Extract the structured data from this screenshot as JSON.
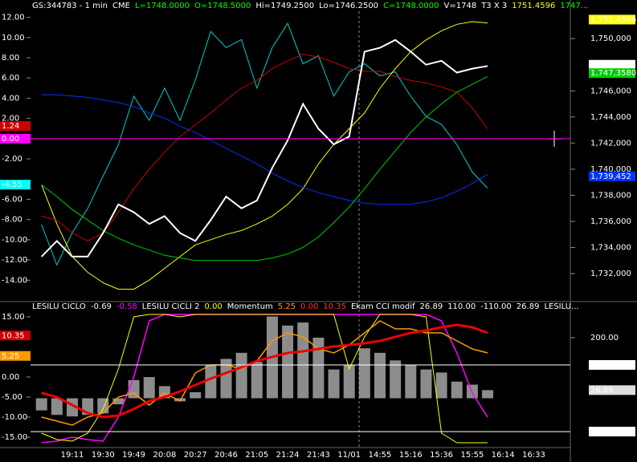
{
  "chart_data": [
    {
      "type": "line",
      "header": [
        {
          "text": "GS:344783 - 1 min",
          "color": "#ffffff"
        },
        {
          "text": "CME",
          "color": "#ffffff"
        },
        {
          "text": "L=1748.0000",
          "color": "#00ff00"
        },
        {
          "text": "O=1748.5000",
          "color": "#00ff00"
        },
        {
          "text": "Hi=1749.2500",
          "color": "#ffffff"
        },
        {
          "text": "Lo=1746.2500",
          "color": "#ffffff"
        },
        {
          "text": "C=1748.0000",
          "color": "#00ff00"
        },
        {
          "text": "V=1748",
          "color": "#ffffff"
        },
        {
          "text": "T3 X 3",
          "color": "#ffffff"
        },
        {
          "text": "1751.4596",
          "color": "#ffff00"
        },
        {
          "text": "1747...",
          "color": "#00ff00"
        }
      ],
      "ylim": [
        -15.8,
        12.6
      ],
      "yticks": [
        {
          "value": 12,
          "label": "12.00"
        },
        {
          "value": 10,
          "label": "10.00"
        },
        {
          "value": 8,
          "label": "8.00"
        },
        {
          "value": 6,
          "label": "6.00"
        },
        {
          "value": 4,
          "label": "4.00"
        },
        {
          "value": 2,
          "label": "2.00"
        },
        {
          "value": -2,
          "label": "-2.00"
        },
        {
          "value": -6,
          "label": "-6.00"
        },
        {
          "value": -8,
          "label": "-8.00"
        },
        {
          "value": -10,
          "label": "-10.00"
        },
        {
          "value": -12,
          "label": "-12.00"
        },
        {
          "value": -14,
          "label": "-14.00"
        }
      ],
      "y2lim": [
        1730100,
        1752100
      ],
      "y2ticks": [
        {
          "value": 1732000,
          "label": "1,732,000"
        },
        {
          "value": 1734000,
          "label": "1,734,000"
        },
        {
          "value": 1736000,
          "label": "1,736,000"
        },
        {
          "value": 1738000,
          "label": "1,738,000"
        },
        {
          "value": 1740000,
          "label": "1,740,000"
        },
        {
          "value": 1742000,
          "label": "1,742,000"
        },
        {
          "value": 1744000,
          "label": "1,744,000"
        },
        {
          "value": 1746000,
          "label": "1,746,000"
        },
        {
          "value": 1750000,
          "label": "1,750,000"
        }
      ],
      "series": [
        {
          "color": "#00cccc",
          "width": 1,
          "axis": "y",
          "values": [
            -8.5,
            -12.5,
            -9.3,
            -6.9,
            -3.7,
            -0.6,
            4.2,
            1.8,
            5.0,
            1.8,
            5.8,
            10.6,
            9.0,
            9.8,
            5.0,
            9.0,
            11.4,
            7.4,
            8.2,
            4.2,
            6.6,
            7.4,
            6.2,
            6.6,
            4.2,
            2.2,
            1.4,
            -0.6,
            -3.3,
            -4.9,
            null,
            null,
            null
          ]
        },
        {
          "color": "#ffff00",
          "width": 1,
          "axis": "y2",
          "values": [
            1738800,
            1735800,
            1733300,
            1732100,
            1731300,
            1730800,
            1730800,
            1731500,
            1732400,
            1733300,
            1734200,
            1734600,
            1735000,
            1735300,
            1735800,
            1736400,
            1737300,
            1738500,
            1740400,
            1741900,
            1743100,
            1744300,
            1746200,
            1747700,
            1749000,
            1749900,
            1750600,
            1751100,
            1751300,
            1751200,
            null,
            null,
            null
          ]
        },
        {
          "color": "#cc0000",
          "width": 1,
          "axis": "y2",
          "values": [
            1736400,
            1736100,
            1735100,
            1734500,
            1735100,
            1736700,
            1738500,
            1740000,
            1741300,
            1742500,
            1743400,
            1744300,
            1745300,
            1746200,
            1746800,
            1747700,
            1748300,
            1748800,
            1748600,
            1748200,
            1747700,
            1747500,
            1747500,
            1747100,
            1746800,
            1746600,
            1746300,
            1745900,
            1744700,
            1743100,
            null,
            null,
            null
          ]
        },
        {
          "color": "#0033ff",
          "width": 1,
          "axis": "y2",
          "values": [
            1745700,
            1745700,
            1745600,
            1745500,
            1745300,
            1745100,
            1744800,
            1744300,
            1743900,
            1743300,
            1742800,
            1742200,
            1741600,
            1741000,
            1740400,
            1739700,
            1739100,
            1738600,
            1738200,
            1737900,
            1737600,
            1737400,
            1737300,
            1737300,
            1737300,
            1737500,
            1737800,
            1738300,
            1738900,
            1739600,
            null,
            null,
            null
          ]
        },
        {
          "color": "#00cc00",
          "width": 1,
          "axis": "y2",
          "values": [
            1738800,
            1737900,
            1736900,
            1736100,
            1735300,
            1734700,
            1734200,
            1733800,
            1733400,
            1733200,
            1733000,
            1733000,
            1733000,
            1733000,
            1733000,
            1733200,
            1733500,
            1734000,
            1734800,
            1735900,
            1737100,
            1738500,
            1740000,
            1741400,
            1742800,
            1744000,
            1745000,
            1745900,
            1746500,
            1747100,
            null,
            null,
            null
          ]
        },
        {
          "color": "#ffffff",
          "width": 2,
          "axis": "y2",
          "values": [
            1733300,
            1734500,
            1733300,
            1733300,
            1735100,
            1737300,
            1736700,
            1735800,
            1736400,
            1735100,
            1734500,
            1736100,
            1737900,
            1737000,
            1737600,
            1740100,
            1742200,
            1745000,
            1743100,
            1741900,
            1742500,
            1749000,
            1749300,
            1749900,
            1749000,
            1748000,
            1748300,
            1747400,
            1747700,
            1747900,
            null,
            null,
            null
          ]
        }
      ],
      "readouts": [
        {
          "value": 1751459.6,
          "label": "1,751,4596",
          "color": "#ffff00",
          "axis": "y2"
        },
        {
          "value": 1748000,
          "label": "1,748,000",
          "color": "#ffffff",
          "axis": "y2"
        },
        {
          "value": 1747358,
          "label": "1,747,3580",
          "color": "#00cc00",
          "axis": "y2"
        },
        {
          "value": 1739452,
          "label": "1,739,452",
          "color": "#0033ff",
          "axis": "y2"
        },
        {
          "value": 1.24,
          "label": "1.24",
          "color": "#cc0000",
          "axis": "y"
        },
        {
          "value": 0,
          "label": "0.00",
          "color": "#ff00ff",
          "axis": "y",
          "line": true
        },
        {
          "value": -4.55,
          "label": "-4.55",
          "color": "#00ffff",
          "axis": "y"
        }
      ]
    },
    {
      "type": "line",
      "header": [
        {
          "text": "LESILU CICLO",
          "color": "#ffffff"
        },
        {
          "text": "-0.69",
          "color": "#ffffff"
        },
        {
          "text": "-0.58",
          "color": "#ff00ff"
        },
        {
          "text": "LESILU CICLI 2",
          "color": "#ffffff"
        },
        {
          "text": "0.00",
          "color": "#ffff00"
        },
        {
          "text": "Momentum",
          "color": "#ffffff"
        },
        {
          "text": "5.25",
          "color": "#ff9900"
        },
        {
          "text": "0.00",
          "color": "#ff3333"
        },
        {
          "text": "10.35",
          "color": "#ff3333"
        },
        {
          "text": "Ekam CCI modif",
          "color": "#ffffff"
        },
        {
          "text": "26.89",
          "color": "#ffffff"
        },
        {
          "text": "110.00",
          "color": "#ffffff"
        },
        {
          "text": "-110.00",
          "color": "#ffffff"
        },
        {
          "text": "26.89",
          "color": "#ffffff"
        },
        {
          "text": "LESILU...",
          "color": "#ffffff"
        }
      ],
      "categories": [
        null,
        null,
        "19:11",
        null,
        "19:30",
        null,
        "19:49",
        null,
        "20:08",
        null,
        "20:27",
        null,
        "20:46",
        null,
        "21:05",
        null,
        "21:24",
        null,
        "21:43",
        null,
        "11/01",
        null,
        "14:55",
        null,
        "15:16",
        null,
        "15:36",
        null,
        "15:55",
        null,
        "16:14",
        null,
        "16:33"
      ],
      "ylim": [
        -18,
        16
      ],
      "yticks": [
        {
          "value": 15,
          "label": "15.00"
        },
        {
          "value": 0,
          "label": "0.00"
        },
        {
          "value": -5,
          "label": "-5.00"
        },
        {
          "value": -10,
          "label": "-10.00"
        },
        {
          "value": -15,
          "label": "-15.00"
        }
      ],
      "y2lim": [
        -168,
        282
      ],
      "y2ticks": [
        {
          "value": 200,
          "label": "200.00"
        }
      ],
      "series": [
        {
          "color": "#bbbbbb",
          "style": "bar",
          "axis": "y2",
          "values": [
            -40,
            -55,
            -60,
            -55,
            -50,
            -20,
            60,
            70,
            40,
            -10,
            20,
            110,
            130,
            150,
            120,
            270,
            240,
            250,
            200,
            95,
            110,
            165,
            150,
            125,
            110,
            95,
            85,
            55,
            45,
            26.89,
            null,
            null,
            null
          ]
        },
        {
          "color": "#ff00ff",
          "width": 1.5,
          "axis": "y",
          "values": [
            -16.4,
            -16,
            -15,
            -15.6,
            -16,
            -10,
            0,
            14,
            15.6,
            15.6,
            15.6,
            15.6,
            15.6,
            15.6,
            15.6,
            15.6,
            15.6,
            15.6,
            15.6,
            15.6,
            15.6,
            15.6,
            15.6,
            15.6,
            15.6,
            15.6,
            14,
            6,
            -4,
            -10,
            null,
            null,
            null
          ]
        },
        {
          "color": "#ffff00",
          "width": 1,
          "axis": "y",
          "values": [
            -14,
            -15.6,
            -16,
            -14,
            -8,
            2,
            15,
            15.6,
            15.6,
            15,
            15.6,
            15.6,
            15.6,
            15.6,
            15.6,
            15.6,
            15.6,
            15.6,
            15.6,
            15.6,
            2,
            10,
            15.6,
            15.6,
            15.6,
            15,
            -14,
            -16.4,
            -16.4,
            -16.4,
            null,
            null,
            null
          ]
        },
        {
          "color": "#ff9900",
          "width": 1.5,
          "axis": "y",
          "values": [
            -10,
            -11,
            -12,
            -10,
            -9,
            -5,
            -4,
            -7,
            -4,
            -6,
            1,
            3,
            3,
            2,
            4,
            9,
            11,
            10,
            7,
            6,
            8,
            11,
            14,
            12,
            12,
            11,
            11,
            9,
            7,
            6,
            null,
            null,
            null
          ]
        },
        {
          "color": "#ee0000",
          "width": 3,
          "axis": "y",
          "values": [
            -4,
            -5,
            -7,
            -9,
            -10,
            -9.6,
            -8,
            -6,
            -5,
            -3.6,
            -2,
            -0.4,
            1,
            2.4,
            4,
            5,
            6,
            6.4,
            7,
            7.6,
            8,
            8.4,
            9,
            10,
            11,
            11.6,
            12.4,
            13,
            12.4,
            11,
            null,
            null,
            null
          ]
        }
      ],
      "readouts": [
        {
          "value": 10.35,
          "label": "10.35",
          "color": "#cc0000",
          "axis": "y"
        },
        {
          "value": 5.25,
          "label": "5.25",
          "color": "#ff9900",
          "axis": "y"
        },
        {
          "value": 110,
          "label": "110.00",
          "color": "#ffffff",
          "axis": "y2",
          "line": true
        },
        {
          "value": 26.89,
          "label": "26.89",
          "color": "#dddddd",
          "axis": "y2"
        },
        {
          "value": -110,
          "label": "-110.00",
          "color": "#ffffff",
          "axis": "y2",
          "line": true
        }
      ]
    }
  ]
}
